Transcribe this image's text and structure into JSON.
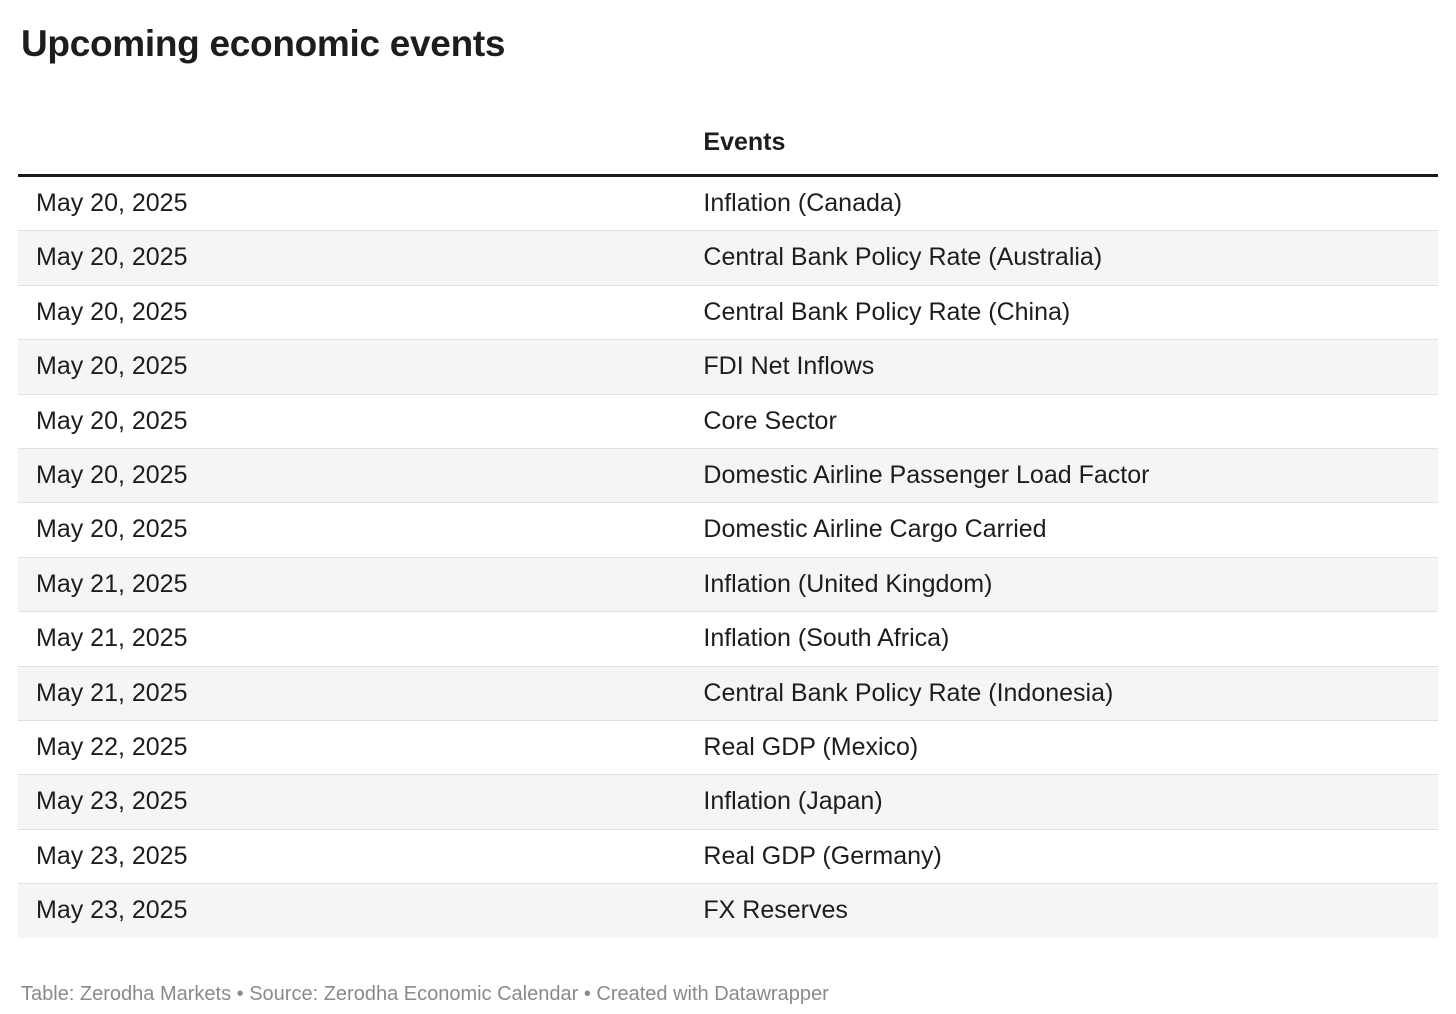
{
  "header": {
    "title": "Upcoming economic events"
  },
  "chart_data": {
    "type": "table",
    "title": "Upcoming economic events",
    "columns": [
      "",
      "Events"
    ],
    "rows": [
      [
        "May 20, 2025",
        "Inflation (Canada)"
      ],
      [
        "May 20, 2025",
        "Central Bank Policy Rate (Australia)"
      ],
      [
        "May 20, 2025",
        "Central Bank Policy Rate (China)"
      ],
      [
        "May 20, 2025",
        "FDI Net Inflows"
      ],
      [
        "May 20, 2025",
        "Core Sector"
      ],
      [
        "May 20, 2025",
        "Domestic Airline Passenger Load Factor"
      ],
      [
        "May 20, 2025",
        "Domestic Airline Cargo Carried"
      ],
      [
        "May 21, 2025",
        "Inflation (United Kingdom)"
      ],
      [
        "May 21, 2025",
        "Inflation (South Africa)"
      ],
      [
        "May 21, 2025",
        "Central Bank Policy Rate (Indonesia)"
      ],
      [
        "May 22, 2025",
        "Real GDP (Mexico)"
      ],
      [
        "May 23, 2025",
        "Inflation (Japan)"
      ],
      [
        "May 23, 2025",
        "Real GDP (Germany)"
      ],
      [
        "May 23, 2025",
        "FX Reserves"
      ]
    ],
    "layout": {
      "zebra_striping": true,
      "alt_row_color": "#f5f5f5",
      "header_rule": "3px solid near-black"
    }
  },
  "footer": {
    "text": "Table: Zerodha Markets • Source: Zerodha Economic Calendar • Created with Datawrapper"
  },
  "colors": {
    "text": "#1d1d1d",
    "row_alt": "#f5f5f5",
    "row_border": "#e0e0e0",
    "header_border": "#1a1a1a",
    "footer_text": "#8a8a8a",
    "background": "#ffffff"
  }
}
